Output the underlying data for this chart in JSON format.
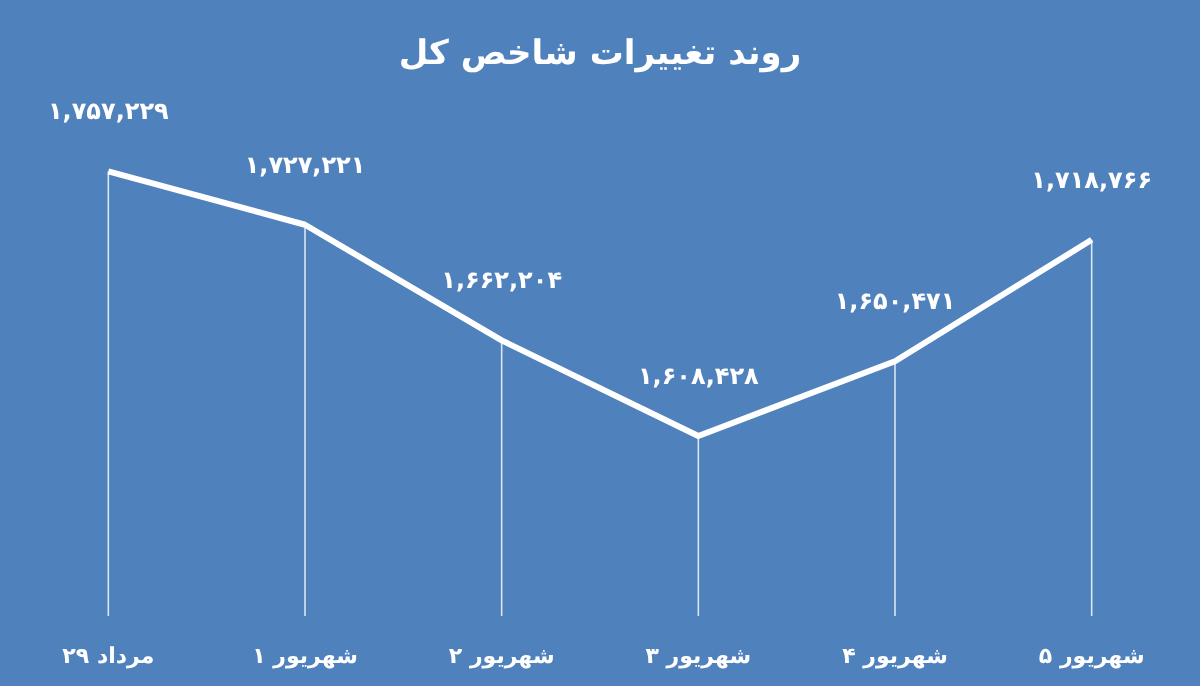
{
  "chart_data": {
    "type": "line",
    "title": "روند تغییرات شاخص کل",
    "categories": [
      "۲۹ مرداد",
      "۱ شهریور",
      "۲ شهریور",
      "۳ شهریور",
      "۴ شهریور",
      "۵ شهریور"
    ],
    "series": [
      {
        "color": "#ffffff",
        "values": [
          1757229,
          1727221,
          1662204,
          1608428,
          1650471,
          1718766
        ],
        "value_labels": [
          "۱,۷۵۷,۲۲۹",
          "۱,۷۲۷,۲۲۱",
          "۱,۶۶۲,۲۰۴",
          "۱,۶۰۸,۴۲۸",
          "۱,۶۵۰,۴۷۱",
          "۱,۷۱۸,۷۶۶"
        ]
      }
    ],
    "grid": "x",
    "marker": "none",
    "line_style": "solid"
  }
}
